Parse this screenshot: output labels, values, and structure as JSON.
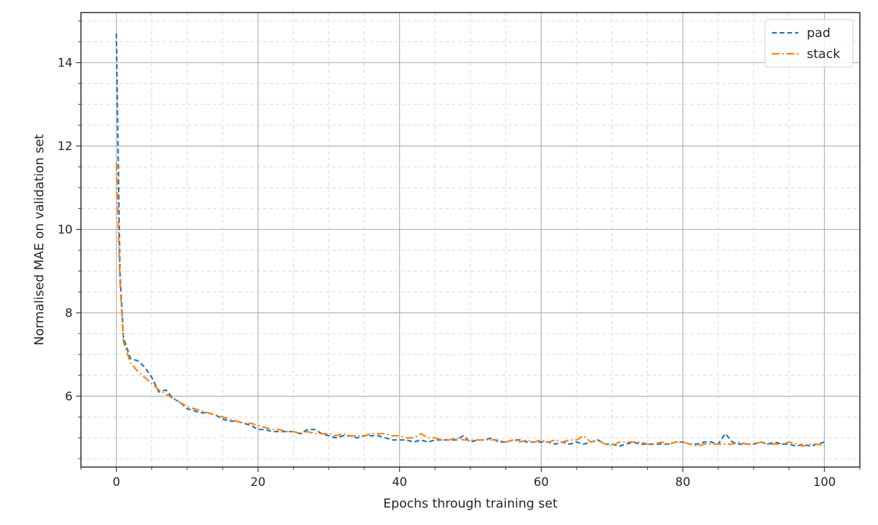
{
  "chart_data": {
    "type": "line",
    "xlabel": "Epochs through training set",
    "ylabel": "Normalised MAE on validation set",
    "xlim": [
      -5,
      105
    ],
    "ylim": [
      4.3,
      15.2
    ],
    "x_ticks": [
      0,
      20,
      40,
      60,
      80,
      100
    ],
    "y_ticks": [
      6,
      8,
      10,
      12,
      14
    ],
    "grid": {
      "major": true,
      "minor": true
    },
    "legend_position": "top-right",
    "series": [
      {
        "name": "pad",
        "color": "#1f77b4",
        "dash": "dashed",
        "x": [
          0,
          0.5,
          1,
          2,
          3,
          4,
          5,
          6,
          7,
          8,
          9,
          10,
          11,
          12,
          13,
          14,
          15,
          16,
          17,
          18,
          19,
          20,
          21,
          22,
          23,
          24,
          25,
          26,
          27,
          28,
          29,
          30,
          31,
          32,
          33,
          34,
          35,
          36,
          37,
          38,
          39,
          40,
          41,
          42,
          43,
          44,
          45,
          46,
          47,
          48,
          49,
          50,
          51,
          52,
          53,
          54,
          55,
          56,
          57,
          58,
          59,
          60,
          61,
          62,
          63,
          64,
          65,
          66,
          67,
          68,
          69,
          70,
          71,
          72,
          73,
          74,
          75,
          76,
          77,
          78,
          79,
          80,
          81,
          82,
          83,
          84,
          85,
          86,
          87,
          88,
          89,
          90,
          91,
          92,
          93,
          94,
          95,
          96,
          97,
          98,
          99,
          100
        ],
        "y": [
          14.7,
          9.0,
          7.4,
          6.9,
          6.85,
          6.7,
          6.45,
          6.1,
          6.15,
          5.95,
          5.85,
          5.7,
          5.65,
          5.6,
          5.6,
          5.55,
          5.45,
          5.4,
          5.4,
          5.35,
          5.3,
          5.2,
          5.2,
          5.15,
          5.15,
          5.15,
          5.15,
          5.1,
          5.2,
          5.2,
          5.1,
          5.05,
          5.0,
          5.05,
          5.05,
          5.0,
          5.05,
          5.05,
          5.05,
          5.0,
          4.95,
          4.95,
          4.95,
          4.9,
          4.95,
          4.9,
          4.95,
          4.95,
          4.95,
          4.95,
          5.05,
          4.9,
          4.95,
          4.95,
          5.0,
          4.9,
          4.9,
          4.95,
          4.95,
          4.9,
          4.9,
          4.9,
          4.9,
          4.85,
          4.9,
          4.85,
          4.9,
          4.85,
          4.9,
          4.95,
          4.85,
          4.85,
          4.8,
          4.85,
          4.9,
          4.85,
          4.85,
          4.85,
          4.85,
          4.85,
          4.9,
          4.9,
          4.85,
          4.85,
          4.9,
          4.9,
          4.85,
          5.1,
          4.9,
          4.85,
          4.85,
          4.85,
          4.9,
          4.85,
          4.9,
          4.85,
          4.85,
          4.8,
          4.85,
          4.8,
          4.85,
          4.9
        ]
      },
      {
        "name": "stack",
        "color": "#ff7f0e",
        "dash": "dashdot",
        "x": [
          0,
          0.5,
          1,
          2,
          3,
          4,
          5,
          6,
          7,
          8,
          9,
          10,
          11,
          12,
          13,
          14,
          15,
          16,
          17,
          18,
          19,
          20,
          21,
          22,
          23,
          24,
          25,
          26,
          27,
          28,
          29,
          30,
          31,
          32,
          33,
          34,
          35,
          36,
          37,
          38,
          39,
          40,
          41,
          42,
          43,
          44,
          45,
          46,
          47,
          48,
          49,
          50,
          51,
          52,
          53,
          54,
          55,
          56,
          57,
          58,
          59,
          60,
          61,
          62,
          63,
          64,
          65,
          66,
          67,
          68,
          69,
          70,
          71,
          72,
          73,
          74,
          75,
          76,
          77,
          78,
          79,
          80,
          81,
          82,
          83,
          84,
          85,
          86,
          87,
          88,
          89,
          90,
          91,
          92,
          93,
          94,
          95,
          96,
          97,
          98,
          99,
          100
        ],
        "y": [
          11.6,
          8.8,
          7.3,
          6.8,
          6.6,
          6.45,
          6.3,
          6.15,
          6.05,
          5.95,
          5.85,
          5.75,
          5.7,
          5.65,
          5.6,
          5.55,
          5.5,
          5.45,
          5.4,
          5.35,
          5.35,
          5.3,
          5.25,
          5.2,
          5.2,
          5.15,
          5.15,
          5.1,
          5.15,
          5.1,
          5.1,
          5.1,
          5.05,
          5.1,
          5.05,
          5.05,
          5.05,
          5.1,
          5.1,
          5.1,
          5.05,
          5.05,
          5.0,
          5.0,
          5.1,
          5.0,
          5.0,
          4.95,
          4.95,
          5.0,
          4.95,
          4.95,
          4.95,
          4.95,
          4.95,
          4.95,
          4.9,
          4.95,
          4.9,
          4.95,
          4.9,
          4.95,
          4.9,
          4.95,
          4.9,
          4.95,
          4.95,
          5.05,
          4.9,
          4.95,
          4.85,
          4.8,
          4.9,
          4.9,
          4.9,
          4.9,
          4.85,
          4.85,
          4.9,
          4.85,
          4.9,
          4.9,
          4.85,
          4.8,
          4.85,
          4.85,
          4.85,
          4.85,
          4.85,
          4.9,
          4.85,
          4.85,
          4.9,
          4.85,
          4.85,
          4.85,
          4.9,
          4.85,
          4.8,
          4.85,
          4.85,
          4.8
        ]
      }
    ]
  }
}
